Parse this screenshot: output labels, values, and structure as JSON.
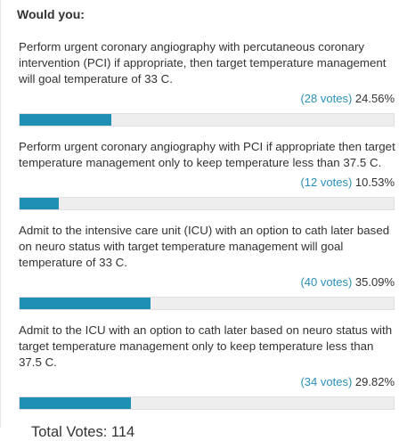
{
  "poll": {
    "title": "Would you:",
    "options": [
      {
        "text": "Perform urgent coronary angiography with percutaneous coronary intervention (PCI) if appropriate, then target temperature management will goal temperature of 33 C.",
        "votes_label": "(28 votes)",
        "percent_label": "24.56%",
        "share": 0.2456
      },
      {
        "text": "Perform urgent coronary angiography with PCI if appropriate then target temperature management only to keep temperature less than 37.5 C.",
        "votes_label": "(12 votes)",
        "percent_label": "10.53%",
        "share": 0.1053
      },
      {
        "text": "Admit to the intensive care unit (ICU) with an option to cath later based on neuro status with target temperature management will goal temperature of 33 C.",
        "votes_label": "(40 votes)",
        "percent_label": "35.09%",
        "share": 0.3509
      },
      {
        "text": "Admit to the ICU with an option to cath later based on neuro status with target temperature management only to keep temperature less than 37.5 C.",
        "votes_label": "(34 votes)",
        "percent_label": "29.82%",
        "share": 0.2982
      }
    ],
    "total_label": "Total Votes: 114"
  },
  "colors": {
    "bar_fill": "#1f8fb3",
    "bar_track": "#eeeeee",
    "link": "#2a8fb8"
  }
}
